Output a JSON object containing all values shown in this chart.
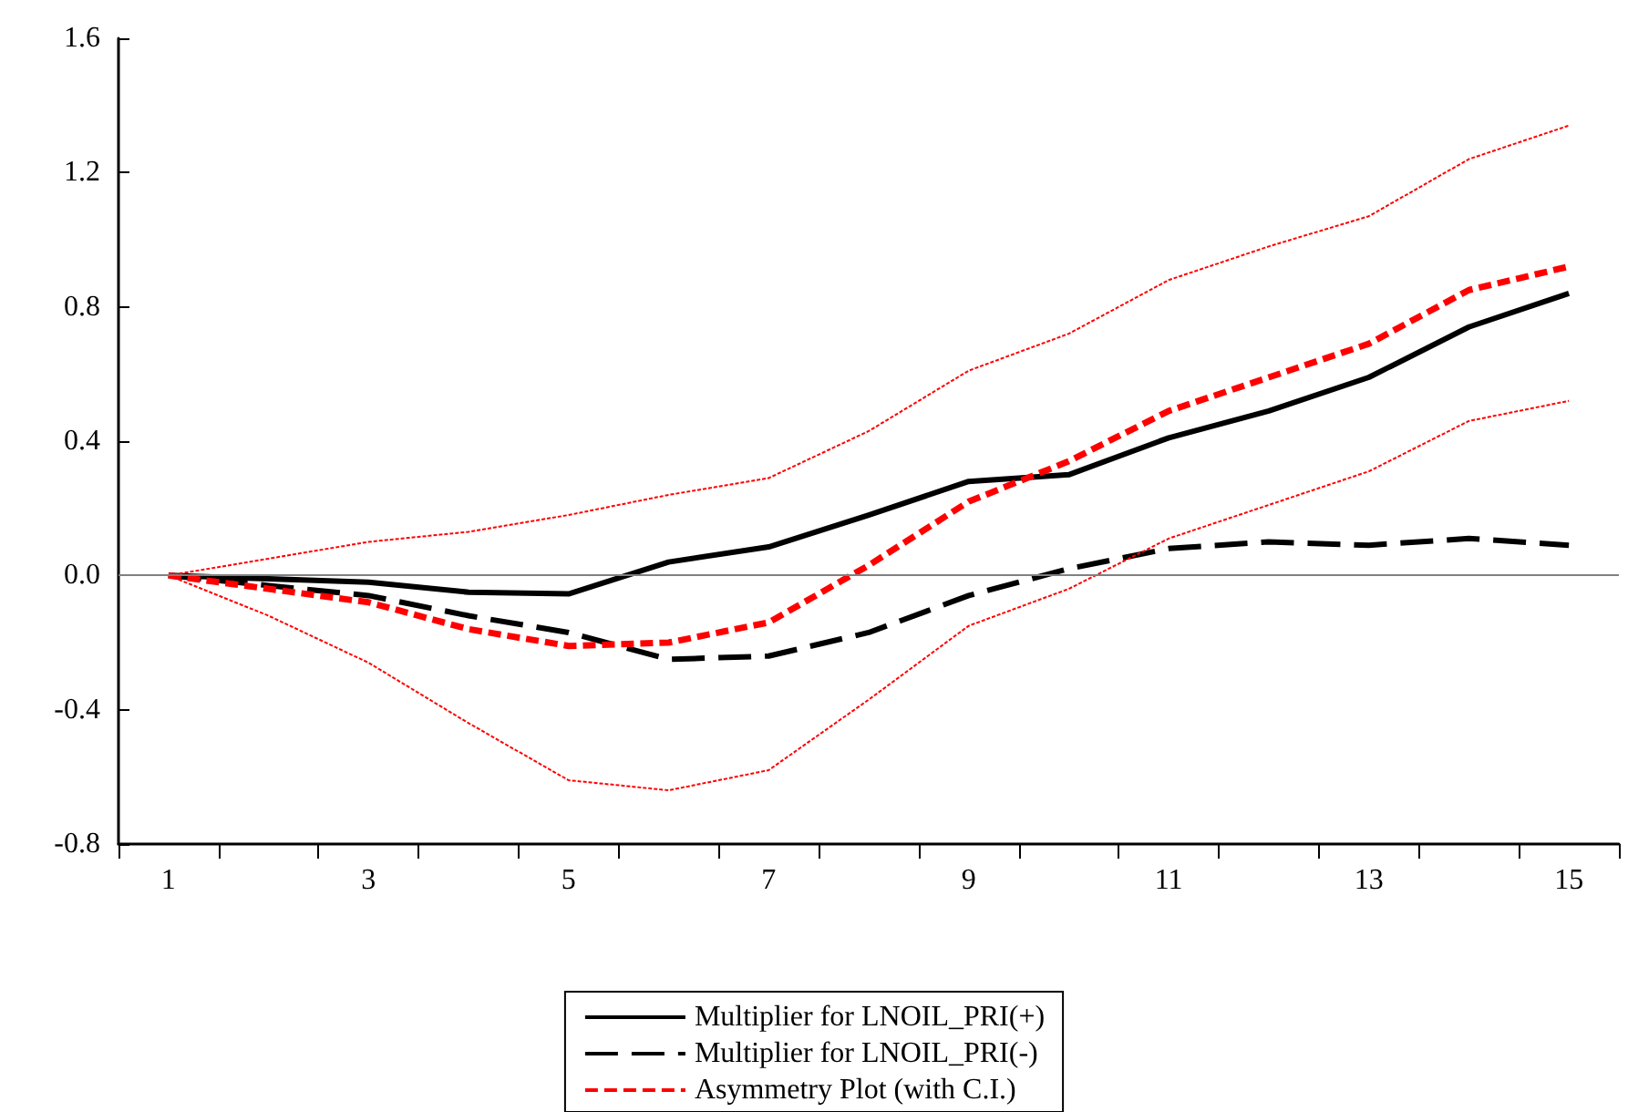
{
  "chart_data": {
    "type": "line",
    "categories": [
      "1",
      null,
      "3",
      null,
      "5",
      null,
      "7",
      null,
      "9",
      null,
      "11",
      null,
      "13",
      null,
      "15"
    ],
    "series": [
      {
        "name": "Multiplier for LNOIL_PRI(+)",
        "color": "#000000",
        "line_style": "solid",
        "values": [
          0,
          -0.01,
          -0.02,
          -0.05,
          -0.055,
          0.04,
          0.085,
          0.18,
          0.28,
          0.3,
          0.41,
          0.49,
          0.59,
          0.74,
          0.84
        ]
      },
      {
        "name": "Multiplier for LNOIL_PRI(-)",
        "color": "#000000",
        "line_style": "dashed",
        "values": [
          0,
          -0.03,
          -0.06,
          -0.12,
          -0.17,
          -0.25,
          -0.24,
          -0.17,
          -0.06,
          0.02,
          0.08,
          0.1,
          0.09,
          0.11,
          0.09
        ]
      },
      {
        "name": "Asymmetry Plot (with C.I.)",
        "color": "#ff0000",
        "line_style": "dashed",
        "values": [
          0,
          -0.04,
          -0.08,
          -0.16,
          -0.21,
          -0.2,
          -0.14,
          0.03,
          0.22,
          0.34,
          0.49,
          0.59,
          0.69,
          0.85,
          0.92
        ]
      },
      {
        "color": "#ff0000",
        "line_style": "dashed",
        "values": [
          0,
          0.05,
          0.1,
          0.13,
          0.18,
          0.24,
          0.29,
          0.43,
          0.61,
          0.72,
          0.88,
          0.98,
          1.07,
          1.24,
          1.34
        ]
      },
      {
        "color": "#ff0000",
        "line_style": "dashed",
        "values": [
          0,
          -0.12,
          -0.26,
          -0.44,
          -0.61,
          -0.64,
          -0.58,
          -0.37,
          -0.15,
          -0.04,
          0.11,
          0.21,
          0.31,
          0.46,
          0.52
        ]
      }
    ],
    "ylim": [
      -0.8,
      1.6
    ],
    "yticks": [
      1.6,
      1.2,
      0.8,
      0.4,
      {
        "value": 0,
        "label": "0.0"
      },
      -0.4,
      -0.8
    ],
    "ref_lines": [
      {
        "axis": "y",
        "value": 0,
        "color": "#808080"
      }
    ],
    "grid": false,
    "legend": "bottom",
    "marker": "none"
  }
}
